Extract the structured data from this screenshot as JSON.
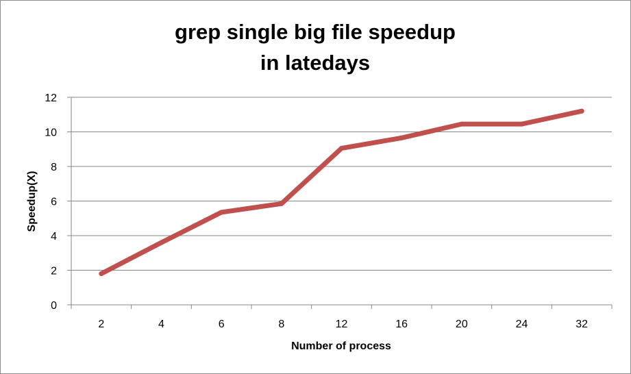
{
  "chart_data": {
    "type": "line",
    "title_lines": [
      "grep single big file speedup",
      "in latedays"
    ],
    "xlabel": "Number of process",
    "ylabel": "Speedup(X)",
    "categories": [
      "2",
      "4",
      "6",
      "8",
      "12",
      "16",
      "20",
      "24",
      "32"
    ],
    "series": [
      {
        "values": [
          1.8,
          3.6,
          5.35,
          5.85,
          9.05,
          9.65,
          10.45,
          10.45,
          11.2
        ],
        "color": "#c0504d"
      }
    ],
    "ylim": [
      0,
      12
    ],
    "yticks": [
      0,
      2,
      4,
      6,
      8,
      10,
      12
    ],
    "grid": true,
    "legend": "none"
  }
}
